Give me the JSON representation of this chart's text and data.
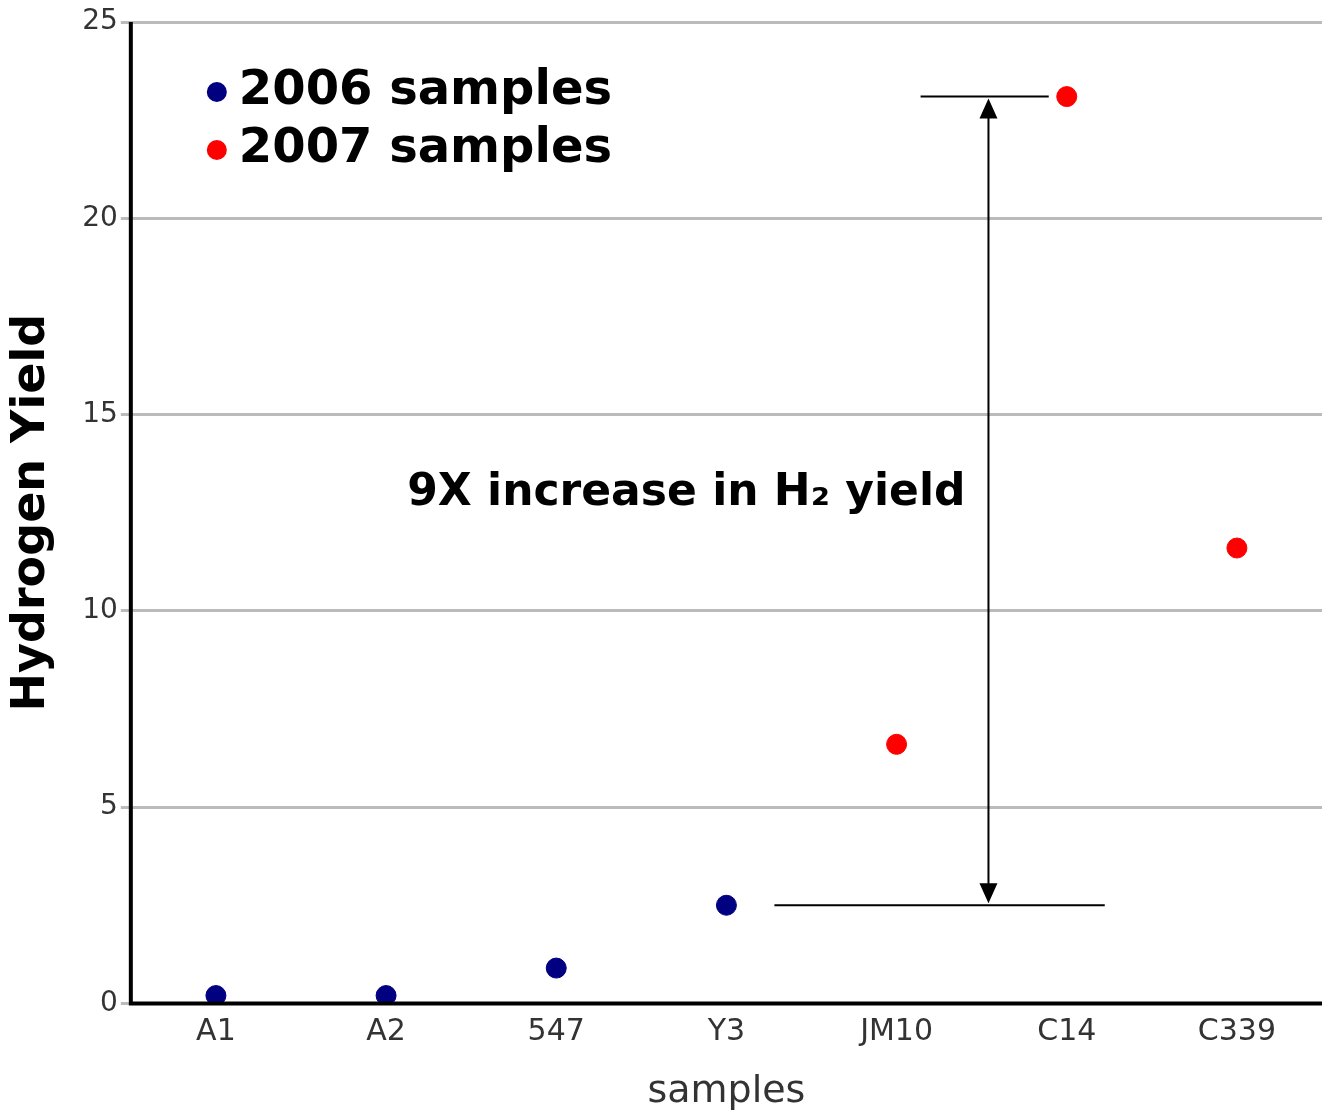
{
  "chart_data": {
    "type": "scatter",
    "xlabel": "samples",
    "ylabel": "Hydrogen Yield",
    "categories": [
      "A1",
      "A2",
      "547",
      "Y3",
      "JM10",
      "C14",
      "C339"
    ],
    "series": [
      {
        "name": "2006 samples",
        "color": "#000080",
        "values": [
          0.2,
          0.2,
          0.9,
          2.5,
          null,
          null,
          null
        ]
      },
      {
        "name": "2007 samples",
        "color": "#ff0000",
        "values": [
          null,
          null,
          null,
          null,
          6.6,
          23.1,
          11.6
        ]
      }
    ],
    "ylim": [
      0,
      25
    ],
    "yticks": [
      0,
      5,
      10,
      15,
      20,
      25
    ],
    "grid": "y",
    "legend": "top left",
    "marker": "circle",
    "annotations": [
      "9X increase in H₂ yield"
    ]
  }
}
